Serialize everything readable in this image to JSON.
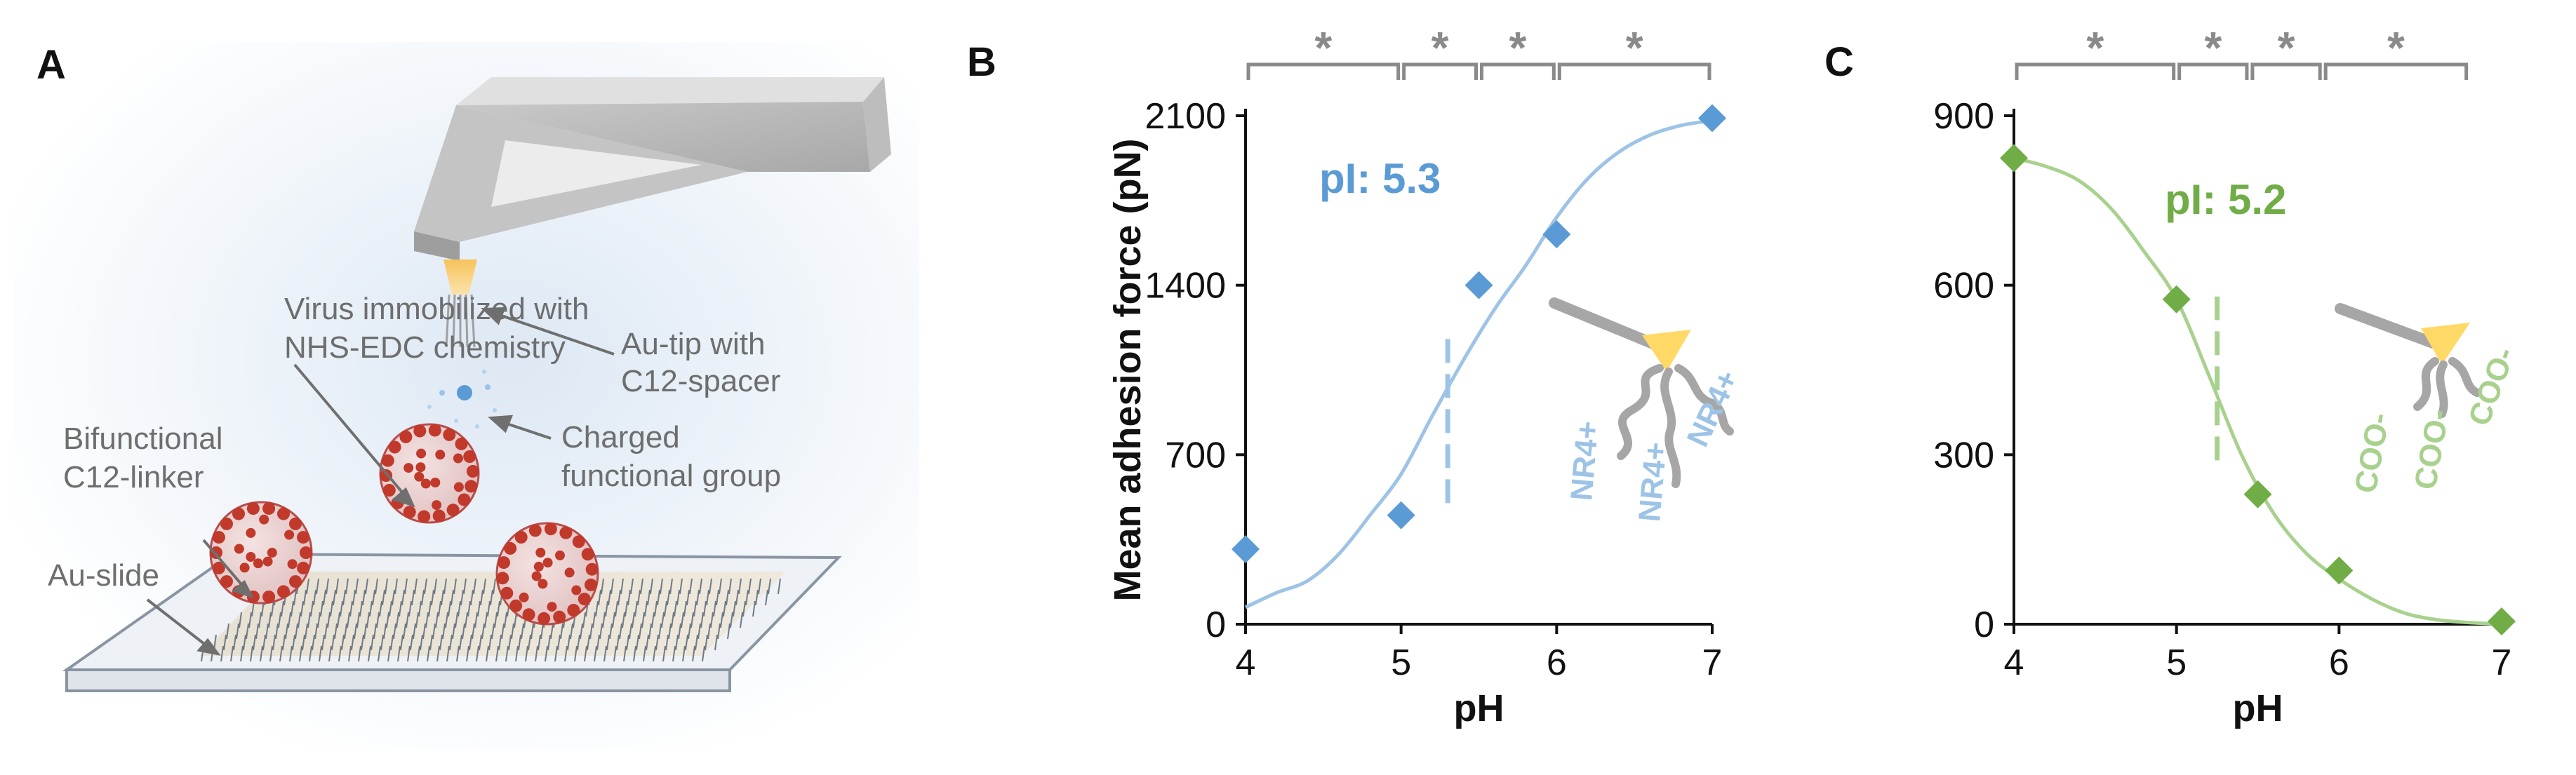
{
  "panels": {
    "a": {
      "letter": "A",
      "labels": {
        "virus": [
          "Virus immobilized with",
          "NHS-EDC chemistry"
        ],
        "tip": [
          "Au-tip with",
          "C12-spacer"
        ],
        "group": [
          "Charged",
          "functional group"
        ],
        "linker": [
          "Bifunctional",
          "C12-linker"
        ],
        "slide": "Au-slide"
      }
    },
    "b": {
      "letter": "B"
    },
    "c": {
      "letter": "C"
    }
  },
  "colors": {
    "blue": "#5b9bd5",
    "blue_line": "#9dc3e6",
    "green": "#70ad47",
    "green_line": "#a9d18e",
    "bracket": "#8a8a8a"
  },
  "chart_data": [
    {
      "type": "scatter",
      "panel": "B",
      "title": "",
      "xlabel": "pH",
      "ylabel": "Mean adhesion force (pN)",
      "x_ticks": [
        4,
        5,
        6,
        7
      ],
      "y_ticks": [
        0,
        700,
        1400,
        2100
      ],
      "xlim": [
        4,
        7
      ],
      "ylim": [
        0,
        2100
      ],
      "series": [
        {
          "name": "NR4+ tip",
          "marker": "diamond",
          "color": "#5b9bd5",
          "x": [
            4,
            5,
            5.5,
            6,
            7
          ],
          "y": [
            310,
            450,
            1400,
            1610,
            2090
          ]
        }
      ],
      "fit_curve": {
        "color": "#9dc3e6",
        "x": [
          4.0,
          4.2,
          4.4,
          4.6,
          4.8,
          5.0,
          5.2,
          5.4,
          5.6,
          5.8,
          6.0,
          6.2,
          6.4,
          6.6,
          6.8,
          7.0
        ],
        "y": [
          70,
          130,
          180,
          290,
          450,
          620,
          860,
          1090,
          1300,
          1480,
          1680,
          1840,
          1950,
          2020,
          2060,
          2080
        ]
      },
      "pI_line": {
        "x": 5.3,
        "y_range": [
          500,
          1180
        ]
      },
      "pI_label": "pI: 5.3",
      "significance": {
        "symbol": "*",
        "brackets": [
          [
            4,
            5
          ],
          [
            5,
            5.5
          ],
          [
            5.5,
            6
          ],
          [
            6,
            7
          ]
        ]
      },
      "inset_labels": [
        "NR4+",
        "NR4+",
        "NR4+"
      ]
    },
    {
      "type": "scatter",
      "panel": "C",
      "title": "",
      "xlabel": "pH",
      "ylabel": "",
      "x_ticks": [
        4,
        5,
        6,
        7
      ],
      "y_ticks": [
        0,
        300,
        600,
        900
      ],
      "xlim": [
        4,
        7
      ],
      "ylim": [
        0,
        900
      ],
      "series": [
        {
          "name": "COO- tip",
          "marker": "diamond",
          "color": "#70ad47",
          "x": [
            4,
            5,
            5.5,
            6,
            7
          ],
          "y": [
            825,
            575,
            230,
            95,
            5
          ]
        }
      ],
      "fit_curve": {
        "color": "#a9d18e",
        "x": [
          4.0,
          4.2,
          4.4,
          4.6,
          4.8,
          5.0,
          5.2,
          5.4,
          5.6,
          5.8,
          6.0,
          6.2,
          6.4,
          6.6,
          6.8,
          7.0
        ],
        "y": [
          825,
          810,
          785,
          735,
          660,
          575,
          440,
          300,
          195,
          125,
          80,
          45,
          20,
          8,
          3,
          0
        ],
        "x_scale_note": ""
      },
      "pI_line": {
        "x": 5.25,
        "y_range": [
          290,
          580
        ]
      },
      "pI_label": "pI: 5.2",
      "significance": {
        "symbol": "*",
        "brackets": [
          [
            4,
            5
          ],
          [
            5,
            5.45
          ],
          [
            5.45,
            5.9
          ],
          [
            5.9,
            6.8
          ]
        ]
      },
      "inset_labels": [
        "COO-",
        "COO-",
        "COO-"
      ]
    }
  ]
}
